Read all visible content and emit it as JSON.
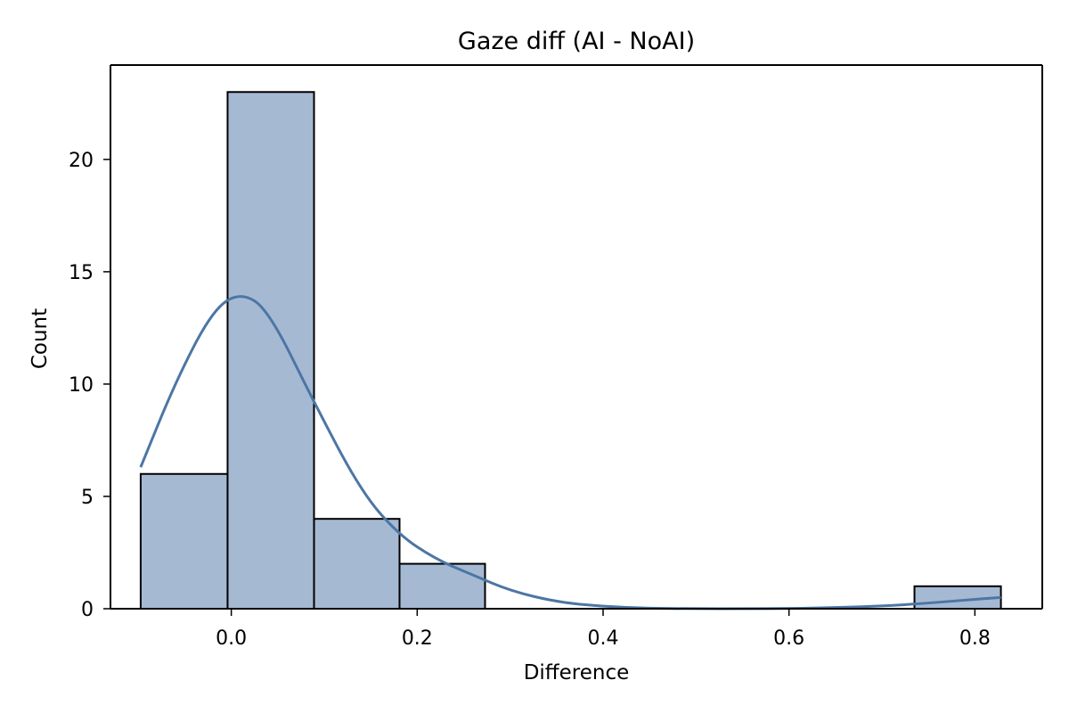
{
  "chart_data": {
    "type": "bar",
    "title": "Gaze diff (AI - NoAI)",
    "xlabel": "Difference",
    "ylabel": "Count",
    "xlim": [
      -0.13,
      0.8725
    ],
    "ylim": [
      0,
      24.2
    ],
    "x_ticks": [
      0.0,
      0.2,
      0.4,
      0.6,
      0.8
    ],
    "x_tick_labels": [
      "0.0",
      "0.2",
      "0.4",
      "0.6",
      "0.8"
    ],
    "y_ticks": [
      0,
      5,
      10,
      15,
      20
    ],
    "y_tick_labels": [
      "0",
      "5",
      "10",
      "15",
      "20"
    ],
    "bins": [
      {
        "x0": -0.0975,
        "x1": -0.004,
        "value": 6
      },
      {
        "x0": -0.004,
        "x1": 0.089,
        "value": 23
      },
      {
        "x0": 0.089,
        "x1": 0.181,
        "value": 4
      },
      {
        "x0": 0.181,
        "x1": 0.273,
        "value": 2
      },
      {
        "x0": 0.273,
        "x1": 0.365,
        "value": 0
      },
      {
        "x0": 0.365,
        "x1": 0.457,
        "value": 0
      },
      {
        "x0": 0.457,
        "x1": 0.549,
        "value": 0
      },
      {
        "x0": 0.549,
        "x1": 0.641,
        "value": 0
      },
      {
        "x0": 0.641,
        "x1": 0.735,
        "value": 0
      },
      {
        "x0": 0.735,
        "x1": 0.828,
        "value": 1
      }
    ],
    "kde": {
      "x": [
        -0.0975,
        -0.06,
        -0.02,
        0.01,
        0.04,
        0.09,
        0.14,
        0.18,
        0.22,
        0.26,
        0.3,
        0.35,
        0.4,
        0.45,
        0.5,
        0.55,
        0.6,
        0.65,
        0.7,
        0.74,
        0.78,
        0.82,
        0.828
      ],
      "y": [
        6.3,
        10.1,
        13.3,
        14.1,
        13.3,
        9.1,
        5.2,
        3.3,
        2.2,
        1.5,
        0.8,
        0.3,
        0.1,
        0.02,
        0.0,
        0.0,
        0.01,
        0.05,
        0.12,
        0.22,
        0.35,
        0.48,
        0.5
      ]
    },
    "colors": {
      "bar_fill": "#a6b9d3",
      "bar_edge": "#000000",
      "kde_line": "#4c76a4",
      "axes": "#000000"
    },
    "grid": false,
    "legend": "none"
  }
}
